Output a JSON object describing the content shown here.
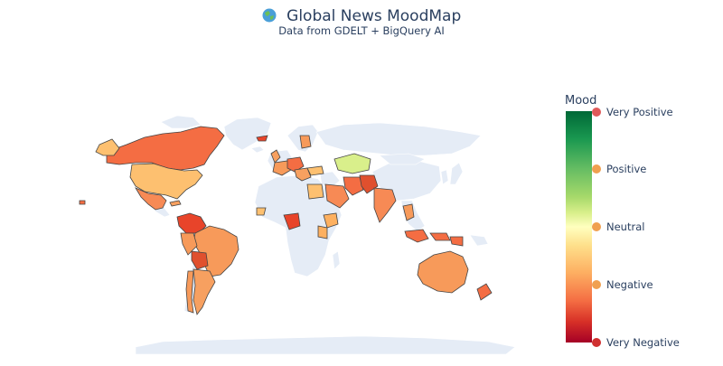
{
  "title": "Global News MoodMap",
  "subtitle": "Data from GDELT + BigQuery AI",
  "legend": {
    "title": "Mood",
    "ticks": [
      {
        "label": "Very Positive",
        "emoji_icon": "grinning-face-icon",
        "color": "#e05a5a"
      },
      {
        "label": "Positive",
        "emoji_icon": "smiling-face-icon",
        "color": "#f0a050"
      },
      {
        "label": "Neutral",
        "emoji_icon": "neutral-face-icon",
        "color": "#f0a050"
      },
      {
        "label": "Negative",
        "emoji_icon": "frowning-face-icon",
        "color": "#f0a050"
      },
      {
        "label": "Very Negative",
        "emoji_icon": "angry-face-icon",
        "color": "#d03030"
      }
    ]
  },
  "colors": {
    "land": "#e5ecf6",
    "border": "#444444",
    "text": "#2a3f5f",
    "scale": [
      "#a50026",
      "#d73027",
      "#f46d43",
      "#fdae61",
      "#fee08b",
      "#ffffbf",
      "#d9ef8b",
      "#a6d96a",
      "#66bd63",
      "#1a9850",
      "#006837"
    ]
  },
  "map_regions": [
    {
      "region": "Canada",
      "mood_color": "#f46d43"
    },
    {
      "region": "United States",
      "mood_color": "#fdc070"
    },
    {
      "region": "Mexico",
      "mood_color": "#f78a55"
    },
    {
      "region": "Brazil",
      "mood_color": "#f79a5a"
    },
    {
      "region": "Bolivia",
      "mood_color": "#e0502e"
    },
    {
      "region": "Argentina",
      "mood_color": "#f7a060"
    },
    {
      "region": "Australia",
      "mood_color": "#f79a5a"
    },
    {
      "region": "Nigeria",
      "mood_color": "#e8442a"
    },
    {
      "region": "Egypt",
      "mood_color": "#fdc070"
    },
    {
      "region": "Kazakhstan",
      "mood_color": "#d9ef8b"
    },
    {
      "region": "India",
      "mood_color": "#f78a55"
    },
    {
      "region": "Iran",
      "mood_color": "#f46d43"
    },
    {
      "region": "Afghanistan",
      "mood_color": "#e0502e"
    },
    {
      "region": "Saudi Arabia",
      "mood_color": "#f78a55"
    },
    {
      "region": "Indonesia",
      "mood_color": "#f46d43"
    },
    {
      "region": "Ethiopia",
      "mood_color": "#fdb060"
    },
    {
      "region": "Kenya",
      "mood_color": "#fdb060"
    },
    {
      "region": "Greenland",
      "mood_color": "#e5ecf6"
    }
  ]
}
